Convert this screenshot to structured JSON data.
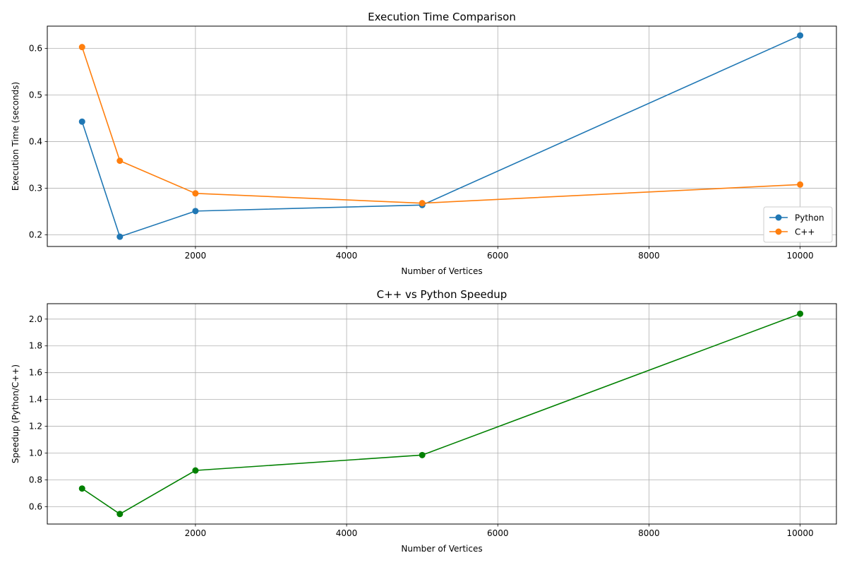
{
  "chart_data": [
    {
      "type": "line",
      "title": "Execution Time Comparison",
      "xlabel": "Number of Vertices",
      "ylabel": "Execution Time (seconds)",
      "x": [
        500,
        1000,
        2000,
        5000,
        10000
      ],
      "xlim": [
        40,
        10480
      ],
      "ylim": [
        0.175,
        0.648
      ],
      "xticks": [
        2000,
        4000,
        6000,
        8000,
        10000
      ],
      "yticks": [
        0.2,
        0.3,
        0.4,
        0.5,
        0.6
      ],
      "xtick_labels": [
        "2000",
        "4000",
        "6000",
        "8000",
        "10000"
      ],
      "ytick_labels": [
        "0.2",
        "0.3",
        "0.4",
        "0.5",
        "0.6"
      ],
      "grid": true,
      "legend_position": "lower-right",
      "series": [
        {
          "name": "Python",
          "color": "#1f77b4",
          "values": [
            0.443,
            0.196,
            0.251,
            0.264,
            0.628
          ]
        },
        {
          "name": "C++",
          "color": "#ff7f0e",
          "values": [
            0.603,
            0.359,
            0.289,
            0.268,
            0.308
          ]
        }
      ]
    },
    {
      "type": "line",
      "title": "C++ vs Python Speedup",
      "xlabel": "Number of Vertices",
      "ylabel": "Speedup (Python/C++)",
      "x": [
        500,
        1000,
        2000,
        5000,
        10000
      ],
      "xlim": [
        40,
        10480
      ],
      "ylim": [
        0.47,
        2.115
      ],
      "xticks": [
        2000,
        4000,
        6000,
        8000,
        10000
      ],
      "yticks": [
        0.6,
        0.8,
        1.0,
        1.2,
        1.4,
        1.6,
        1.8,
        2.0
      ],
      "xtick_labels": [
        "2000",
        "4000",
        "6000",
        "8000",
        "10000"
      ],
      "ytick_labels": [
        "0.6",
        "0.8",
        "1.0",
        "1.2",
        "1.4",
        "1.6",
        "1.8",
        "2.0"
      ],
      "grid": true,
      "series": [
        {
          "color": "#008000",
          "values": [
            0.735,
            0.545,
            0.87,
            0.985,
            2.04
          ]
        }
      ]
    }
  ]
}
